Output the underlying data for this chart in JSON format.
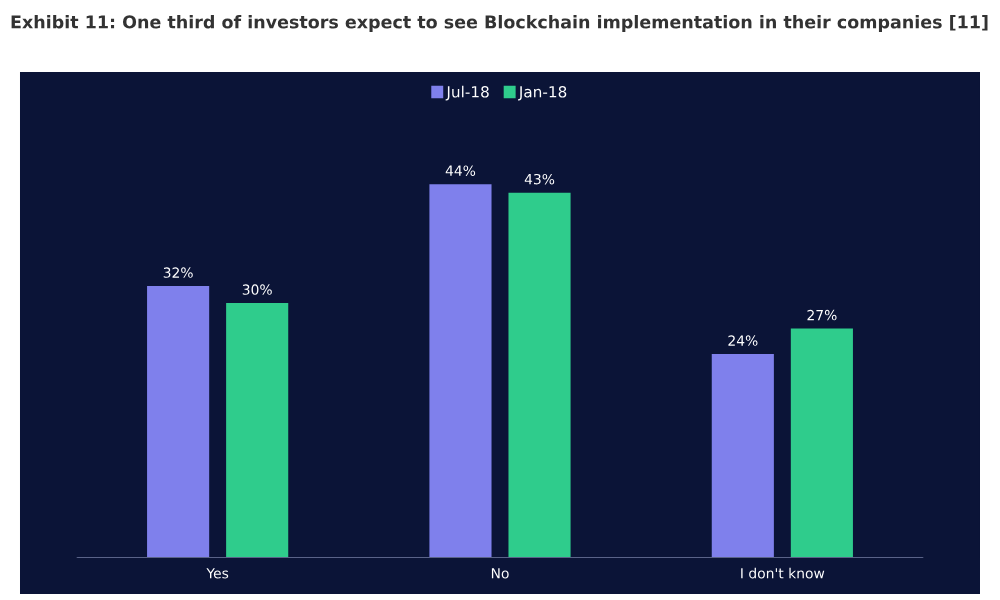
{
  "chart_data": {
    "type": "bar",
    "title": "Exhibit 11: One third of investors expect to see Blockchain implementation in their companies [11]",
    "categories": [
      "Yes",
      "No",
      "I don't know"
    ],
    "series": [
      {
        "name": "Jul-18",
        "color": "#7f80ec",
        "values": [
          32,
          44,
          24
        ],
        "value_labels": [
          "32%",
          "44%",
          "24%"
        ]
      },
      {
        "name": "Jan-18",
        "color": "#2fcc8c",
        "values": [
          30,
          43,
          27
        ],
        "value_labels": [
          "30%",
          "43%",
          "27%"
        ]
      }
    ],
    "legend": "top",
    "grid": false
  }
}
